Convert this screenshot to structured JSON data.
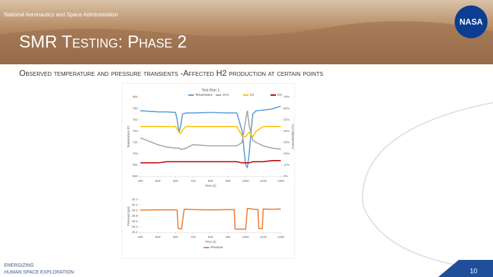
{
  "header": {
    "agency": "National Aeronautics and Space Administration",
    "logo": "NASA"
  },
  "title": "SMR Testing: Phase 2",
  "subtitle": "Observed temperature and pressure transients -Affected H2 production at certain points",
  "chart_data": [
    {
      "type": "line",
      "title": "Test Run 1",
      "x_label": "Time (s)",
      "y_label": "Temperature (F)",
      "y2_label": "Concentration (%)",
      "x": [
        400,
        450,
        500,
        550,
        600,
        610,
        620,
        630,
        640,
        660,
        700,
        800,
        900,
        950,
        980,
        1000,
        1010,
        1020,
        1040,
        1060,
        1100,
        1150,
        1200
      ],
      "xlim": [
        400,
        1200
      ],
      "xticks": [
        400,
        500,
        600,
        700,
        800,
        900,
        1000,
        1100,
        1200
      ],
      "ylim": [
        660,
        800
      ],
      "yticks": [
        660,
        680,
        700,
        720,
        740,
        760,
        780,
        800
      ],
      "y2lim": [
        0,
        70
      ],
      "y2ticks": [
        {
          "value": 0,
          "label": "0%"
        },
        {
          "value": 10,
          "label": "10%"
        },
        {
          "value": 20,
          "label": "20%"
        },
        {
          "value": 30,
          "label": "30%"
        },
        {
          "value": 40,
          "label": "40%"
        },
        {
          "value": 50,
          "label": "50%"
        },
        {
          "value": 60,
          "label": "60%"
        },
        {
          "value": 70,
          "label": "70%"
        }
      ],
      "grid": false,
      "legend": "top",
      "series": [
        {
          "name": "Temperature",
          "color": "#5b9bd5",
          "values": [
            776,
            775,
            774,
            774,
            773,
            760,
            737,
            750,
            770,
            772,
            772,
            773,
            772,
            772,
            740,
            680,
            676,
            700,
            770,
            776,
            777,
            779,
            784
          ]
        },
        {
          "name": "CH4",
          "color": "#a5a5a5",
          "axis": "y2",
          "values": [
            34,
            31,
            28,
            26,
            25,
            25,
            25,
            24,
            24,
            25,
            28,
            27,
            27,
            27,
            30,
            50,
            58,
            45,
            32,
            30,
            27,
            25,
            24
          ]
        },
        {
          "name": "H2",
          "color": "#ffc000",
          "axis": "y2",
          "values": [
            44,
            44,
            44,
            44,
            44,
            42,
            39,
            38,
            41,
            44,
            44,
            44,
            44,
            44,
            36,
            35,
            37,
            39,
            35,
            40,
            44,
            44,
            44
          ]
        },
        {
          "name": "CO",
          "color": "#c00000",
          "axis": "y2",
          "values": [
            12,
            12,
            12,
            13,
            13,
            13,
            13,
            13,
            13,
            13,
            13,
            13,
            13,
            13,
            12,
            12,
            12,
            12,
            13,
            13,
            13,
            14,
            14
          ]
        }
      ]
    },
    {
      "type": "line",
      "x_label": "Time (s)",
      "y_label": "Pressure (psi)",
      "x": [
        400,
        500,
        600,
        610,
        615,
        635,
        640,
        650,
        700,
        800,
        900,
        935,
        940,
        1000,
        1005,
        1010,
        1050,
        1070,
        1075,
        1095,
        1100,
        1150,
        1200
      ],
      "xlim": [
        400,
        1200
      ],
      "xticks": [
        400,
        500,
        600,
        700,
        800,
        900,
        1000,
        1100,
        1200
      ],
      "ylim": [
        29.2,
        30.4
      ],
      "yticks": [
        29.2,
        29.4,
        29.6,
        29.8,
        {
          "value": 30,
          "label": "30.0"
        },
        30.2,
        30.4
      ],
      "grid": false,
      "legend": "bottom",
      "series": [
        {
          "name": "Pressure",
          "color": "#ed7d31",
          "values": [
            30.02,
            30.03,
            30.03,
            30.02,
            29.35,
            29.33,
            29.6,
            30.05,
            30.04,
            30.03,
            30.04,
            30.04,
            29.33,
            29.32,
            29.7,
            30.08,
            30.05,
            30.04,
            29.35,
            29.34,
            30.06,
            30.05,
            30.06
          ]
        }
      ]
    }
  ],
  "footer": {
    "line1": "Energizing",
    "line2": "Human Space Exploration",
    "page": "10"
  }
}
